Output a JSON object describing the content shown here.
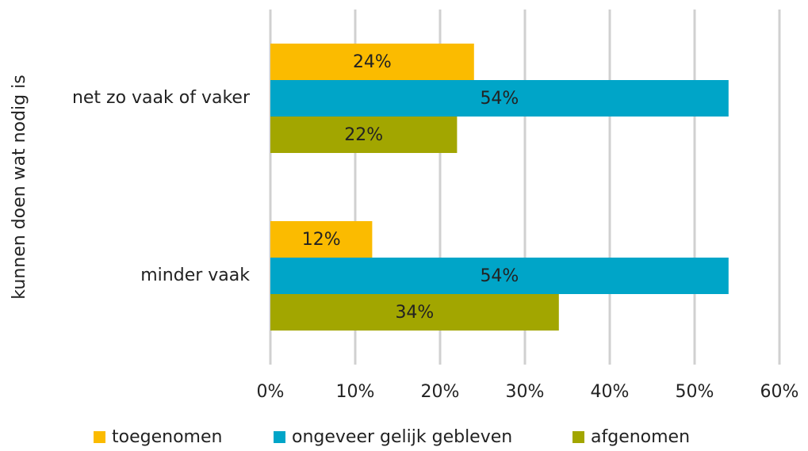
{
  "chart_data": {
    "type": "bar",
    "orientation": "horizontal",
    "y_axis_label": "kunnen doen wat nodig is",
    "categories": [
      "net zo vaak of vaker",
      "minder vaak"
    ],
    "series": [
      {
        "name": "toegenomen",
        "color": "#fbbb00",
        "values": [
          24,
          12
        ],
        "value_labels": [
          "24%",
          "12%"
        ]
      },
      {
        "name": "ongeveer gelijk gebleven",
        "color": "#00a5c8",
        "values": [
          54,
          54
        ],
        "value_labels": [
          "54%",
          "54%"
        ]
      },
      {
        "name": "afgenomen",
        "color": "#a2a600",
        "values": [
          22,
          34
        ],
        "value_labels": [
          "22%",
          "34%"
        ]
      }
    ],
    "xlim": [
      0,
      60
    ],
    "xticks": [
      {
        "value": 0,
        "label": "0%"
      },
      {
        "value": 10,
        "label": "10%"
      },
      {
        "value": 20,
        "label": "20%"
      },
      {
        "value": 30,
        "label": "30%"
      },
      {
        "value": 40,
        "label": "40%"
      },
      {
        "value": 50,
        "label": "50%"
      },
      {
        "value": 60,
        "label": "60%"
      }
    ],
    "grid": true,
    "legend": "bottom"
  }
}
